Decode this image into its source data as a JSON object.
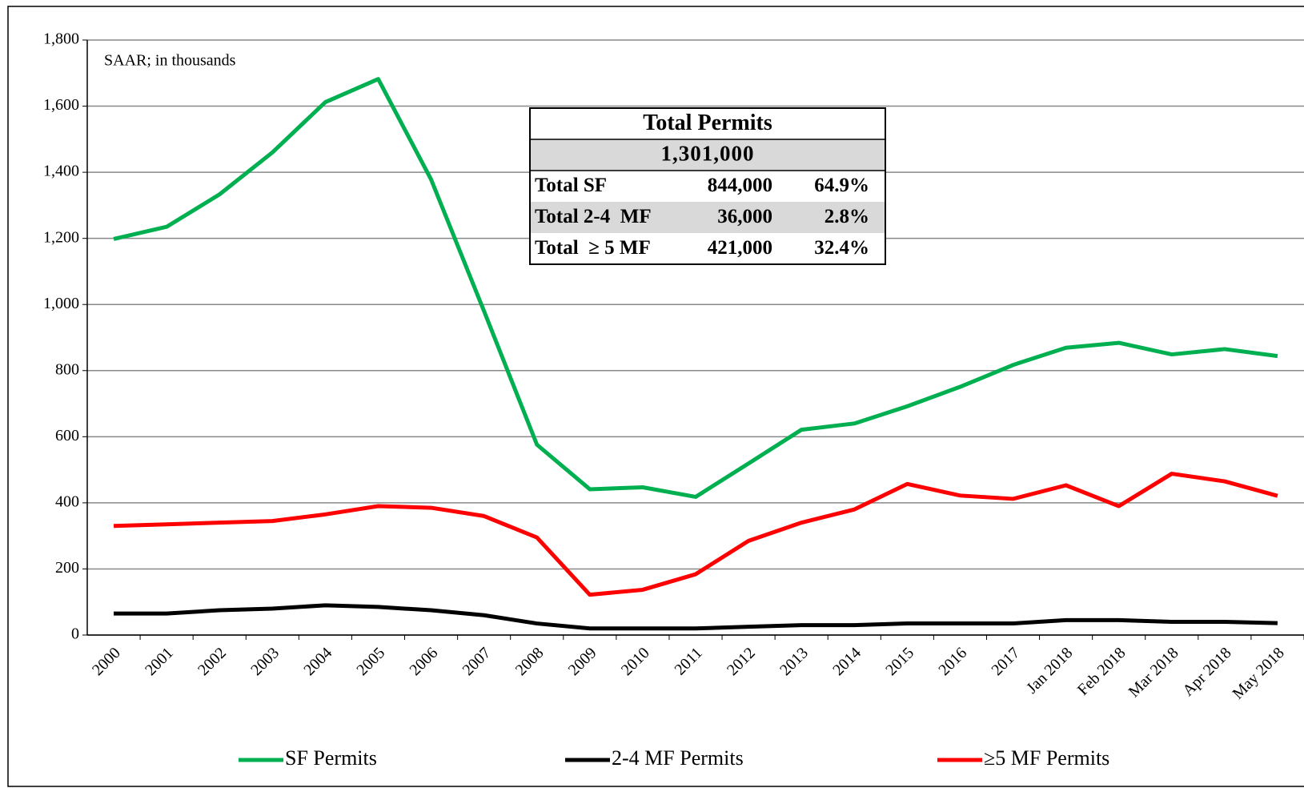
{
  "chart_data": {
    "type": "line",
    "note": "SAAR; in thousands",
    "categories": [
      "2000",
      "2001",
      "2002",
      "2003",
      "2004",
      "2005",
      "2006",
      "2007",
      "2008",
      "2009",
      "2010",
      "2011",
      "2012",
      "2013",
      "2014",
      "2015",
      "2016",
      "2017",
      "Jan 2018",
      "Feb 2018",
      "Mar 2018",
      "Apr 2018",
      "May 2018"
    ],
    "series": [
      {
        "name": "SF Permits",
        "color": "#00b050",
        "values": [
          1198,
          1235,
          1333,
          1460,
          1612,
          1682,
          1378,
          980,
          576,
          441,
          447,
          418,
          519,
          621,
          640,
          692,
          751,
          817,
          869,
          884,
          849,
          865,
          844
        ]
      },
      {
        "name": "2-4 MF Permits",
        "color": "#000000",
        "values": [
          65,
          65,
          75,
          80,
          90,
          85,
          75,
          60,
          35,
          20,
          20,
          20,
          25,
          30,
          30,
          35,
          35,
          35,
          45,
          45,
          40,
          40,
          36
        ]
      },
      {
        "name": "≥5 MF Permits",
        "color": "#ff0000",
        "values": [
          330,
          335,
          340,
          345,
          365,
          390,
          385,
          360,
          295,
          122,
          137,
          184,
          285,
          340,
          380,
          457,
          422,
          412,
          453,
          390,
          488,
          465,
          421
        ]
      }
    ],
    "ylim": [
      0,
      1800
    ],
    "yticks": [
      0,
      200,
      400,
      600,
      800,
      {
        "value": 1000,
        "label": "1,000"
      },
      {
        "value": 1200,
        "label": "1,200"
      },
      {
        "value": 1400,
        "label": "1,400"
      },
      {
        "value": 1600,
        "label": "1,600"
      },
      {
        "value": 1800,
        "label": "1,800"
      }
    ],
    "grid": true,
    "legend": "bottom"
  },
  "table": {
    "title": "Total Permits",
    "total": "1,301,000",
    "rows": [
      [
        "Total SF",
        "844,000",
        "64.9%"
      ],
      [
        "Total 2-4  MF",
        "36,000",
        "2.8%"
      ],
      [
        "Total  ≥ 5 MF",
        "421,000",
        "32.4%"
      ]
    ]
  }
}
